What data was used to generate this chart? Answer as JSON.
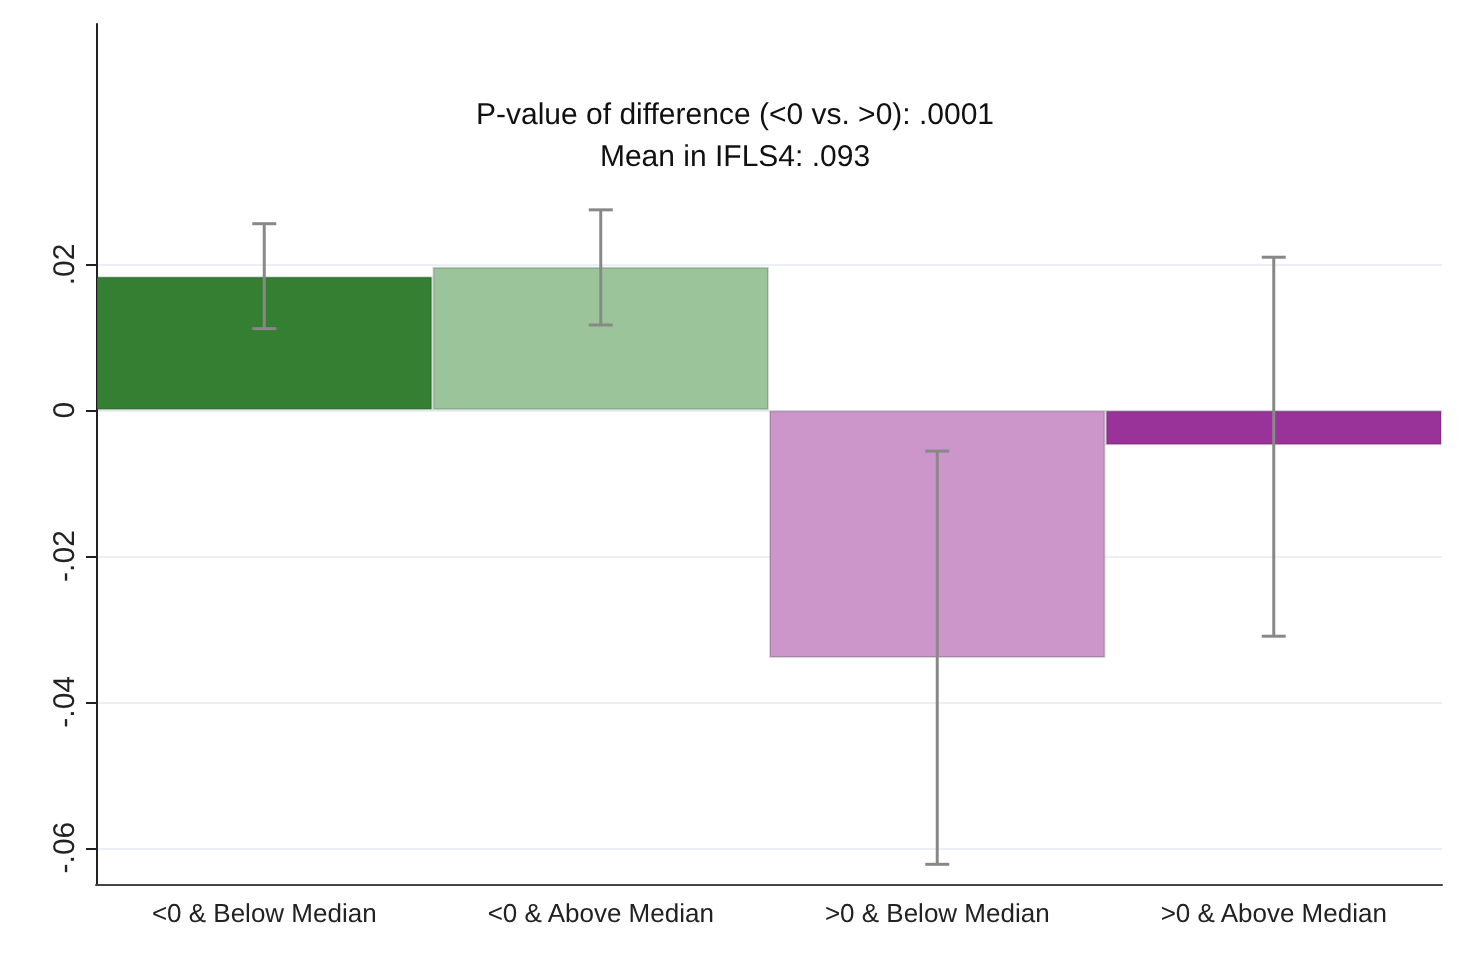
{
  "chart_data": {
    "type": "bar",
    "categories": [
      "<0 & Below Median",
      "<0 & Above Median",
      ">0 & Below Median",
      ">0 & Above Median"
    ],
    "values": [
      0.0184,
      0.0197,
      -0.034,
      -0.0048
    ],
    "colors": [
      "#357f33",
      "#9bc49a",
      "#cc96cb",
      "#993399"
    ],
    "errors": [
      [
        0.0112,
        0.0256
      ],
      [
        0.0117,
        0.0275
      ],
      [
        -0.0623,
        -0.0056
      ],
      [
        -0.031,
        0.021
      ]
    ],
    "ylim": [
      -0.065,
      0.053
    ],
    "yticks": [
      {
        "value": -0.06,
        "label": "-.06"
      },
      {
        "value": -0.04,
        "label": "-.04"
      },
      {
        "value": -0.02,
        "label": "-.02"
      },
      0,
      {
        "value": 0.02,
        "label": ".02"
      }
    ],
    "annotations": [
      "P-value of difference (<0 vs. >0): .0001",
      "Mean in IFLS4: .093"
    ],
    "grid": "y"
  }
}
